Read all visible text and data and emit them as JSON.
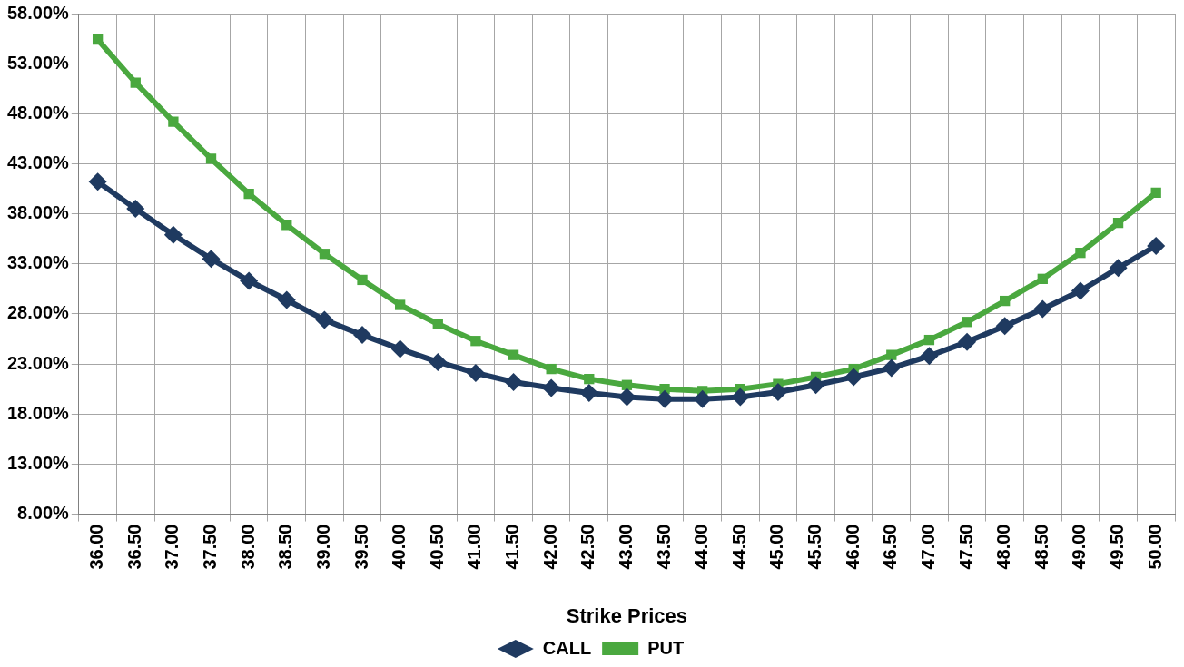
{
  "chart_data": {
    "type": "line",
    "xlabel": "Strike Prices",
    "categories": [
      "36.00",
      "36.50",
      "37.00",
      "37.50",
      "38.00",
      "38.50",
      "39.00",
      "39.50",
      "40.00",
      "40.50",
      "41.00",
      "41.50",
      "42.00",
      "42.50",
      "43.00",
      "43.50",
      "44.00",
      "44.50",
      "45.00",
      "45.50",
      "46.00",
      "46.50",
      "47.00",
      "47.50",
      "48.00",
      "48.50",
      "49.00",
      "49.50",
      "50.00"
    ],
    "series": [
      {
        "name": "CALL",
        "color": "#1f3a60",
        "marker": "diamond",
        "values": [
          41.2,
          38.5,
          35.9,
          33.5,
          31.3,
          29.4,
          27.4,
          25.9,
          24.5,
          23.2,
          22.1,
          21.2,
          20.6,
          20.1,
          19.7,
          19.5,
          19.5,
          19.7,
          20.2,
          20.9,
          21.7,
          22.6,
          23.8,
          25.2,
          26.8,
          28.5,
          30.3,
          32.6,
          34.8
        ]
      },
      {
        "name": "PUT",
        "color": "#4aa83f",
        "marker": "square",
        "values": [
          55.4,
          51.1,
          47.2,
          43.5,
          40.0,
          36.9,
          34.0,
          31.4,
          28.9,
          27.0,
          25.3,
          23.9,
          22.5,
          21.5,
          20.9,
          20.5,
          20.3,
          20.5,
          21.0,
          21.7,
          22.5,
          23.9,
          25.4,
          27.2,
          29.3,
          31.5,
          34.1,
          37.1,
          40.1
        ]
      }
    ],
    "ylim": [
      8,
      58
    ],
    "yticks": [
      {
        "value": 8,
        "label": "8.00%"
      },
      {
        "value": 13,
        "label": "13.00%"
      },
      {
        "value": 18,
        "label": "18.00%"
      },
      {
        "value": 23,
        "label": "23.00%"
      },
      {
        "value": 28,
        "label": "28.00%"
      },
      {
        "value": 33,
        "label": "33.00%"
      },
      {
        "value": 38,
        "label": "38.00%"
      },
      {
        "value": 43,
        "label": "43.00%"
      },
      {
        "value": 48,
        "label": "48.00%"
      },
      {
        "value": 53,
        "label": "53.00%"
      },
      {
        "value": 58,
        "label": "58.00%"
      }
    ],
    "grid": true,
    "legend": "bottom",
    "line_style": "solid"
  }
}
